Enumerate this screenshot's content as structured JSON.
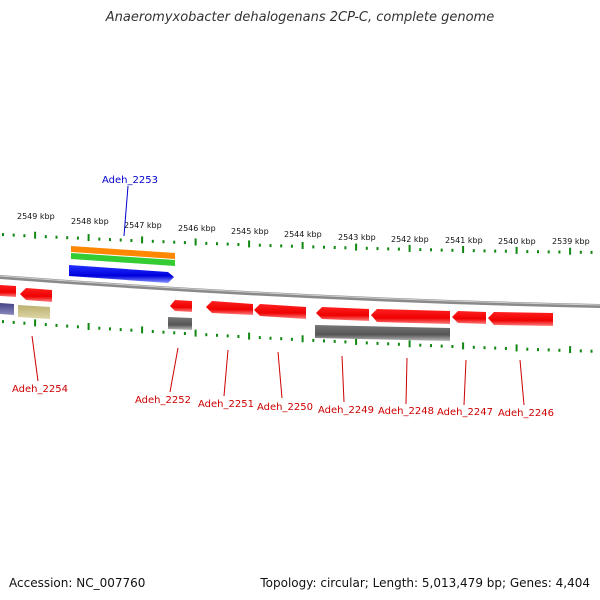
{
  "title": "Anaeromyxobacter dehalogenans 2CP-C, complete genome",
  "footer": {
    "accession": "Accession: NC_007760",
    "summary": "Topology: circular; Length: 5,013,479 bp; Genes: 4,404"
  },
  "colors": {
    "forward_gene": "#ff0000",
    "reverse_gene": "#ff0000",
    "pseudo_gene": "#666666",
    "highlight_gene": "#0000cc",
    "ticks": "#118811",
    "backbone": "#888888"
  },
  "scale_labels": [
    "2549 kbp",
    "2548 kbp",
    "2547 kbp",
    "2546 kbp",
    "2545 kbp",
    "2544 kbp",
    "2543 kbp",
    "2542 kbp",
    "2541 kbp",
    "2540 kbp",
    "2539 kbp"
  ],
  "gene_labels": [
    {
      "name": "Adeh_2253",
      "color": "#0000cc"
    },
    {
      "name": "Adeh_2254",
      "color": "#cc0000"
    },
    {
      "name": "Adeh_2252",
      "color": "#cc0000"
    },
    {
      "name": "Adeh_2251",
      "color": "#cc0000"
    },
    {
      "name": "Adeh_2250",
      "color": "#cc0000"
    },
    {
      "name": "Adeh_2249",
      "color": "#cc0000"
    },
    {
      "name": "Adeh_2248",
      "color": "#cc0000"
    },
    {
      "name": "Adeh_2247",
      "color": "#cc0000"
    },
    {
      "name": "Adeh_2246",
      "color": "#cc0000"
    }
  ]
}
